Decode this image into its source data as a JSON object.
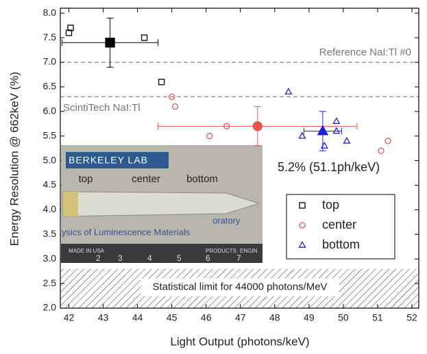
{
  "chart_data": {
    "type": "scatter",
    "xlabel": "Light Output (photons/keV)",
    "ylabel": "Energy Resolution @ 662keV (%)",
    "xlim": [
      41.75,
      52.2
    ],
    "ylim": [
      2.0,
      8.1
    ],
    "xticks": [
      42,
      43,
      44,
      45,
      46,
      47,
      48,
      49,
      50,
      51,
      52
    ],
    "yticks": [
      {
        "value": 2.0,
        "label": "2.0"
      },
      {
        "value": 2.5,
        "label": "2.5"
      },
      {
        "value": 3.0,
        "label": "3.0"
      },
      {
        "value": 3.5,
        "label": "3.5"
      },
      {
        "value": 4.0,
        "label": "4.0"
      },
      {
        "value": 4.5,
        "label": "4.5"
      },
      {
        "value": 5.0,
        "label": "5.0"
      },
      {
        "value": 5.5,
        "label": "5.5"
      },
      {
        "value": 6.0,
        "label": "6.0"
      },
      {
        "value": 6.5,
        "label": "6.5"
      },
      {
        "value": 7.0,
        "label": "7.0"
      },
      {
        "value": 7.5,
        "label": "7.5"
      },
      {
        "value": 8.0,
        "label": "8.0"
      }
    ],
    "legend": "lower right",
    "series": [
      {
        "name": "top",
        "color": "#000000",
        "marker": "square",
        "x": [
          42.0,
          42.05,
          44.2,
          44.7
        ],
        "values": [
          7.6,
          7.7,
          7.5,
          6.6
        ],
        "mean": {
          "x": 43.2,
          "y": 7.4,
          "xerr": 1.4,
          "yerr": 0.5
        }
      },
      {
        "name": "center",
        "color": "#e8524f",
        "marker": "circle",
        "x": [
          45.0,
          45.1,
          46.1,
          46.6,
          51.1,
          51.3
        ],
        "values": [
          6.3,
          6.1,
          5.5,
          5.7,
          5.2,
          5.4
        ],
        "mean": {
          "x": 47.5,
          "y": 5.7,
          "xerr": 2.9,
          "yerr": 0.4
        }
      },
      {
        "name": "bottom",
        "color": "#1f1fd6",
        "marker": "triangle",
        "x": [
          48.4,
          48.8,
          49.45,
          49.8,
          49.8,
          50.1
        ],
        "values": [
          6.4,
          5.5,
          5.3,
          5.6,
          5.8,
          5.4
        ],
        "mean": {
          "x": 49.4,
          "y": 5.6,
          "xerr": 0.55,
          "yerr": 0.4
        }
      }
    ],
    "hlines": [
      {
        "y": 7.0,
        "label": "Reference NaI:Tl #0"
      },
      {
        "y": 6.3,
        "label": "ScintiTech NaI:Tl"
      }
    ],
    "shaded_region": {
      "ymax": 2.8,
      "label": "Statistical limit for 44000 photons/MeV"
    },
    "annotation": "5.2% (51.1ph/keV)",
    "inset": {
      "brand": "BERKELEY LAB",
      "labels": [
        "top",
        "center",
        "bottom"
      ],
      "caption": [
        "oratory",
        "ysics of Luminescence Materials"
      ],
      "ruler": [
        "MADE IN USA",
        "2",
        "3",
        "4",
        "5",
        "6",
        "7",
        "PRODUCTS",
        "ENGIN"
      ]
    }
  }
}
